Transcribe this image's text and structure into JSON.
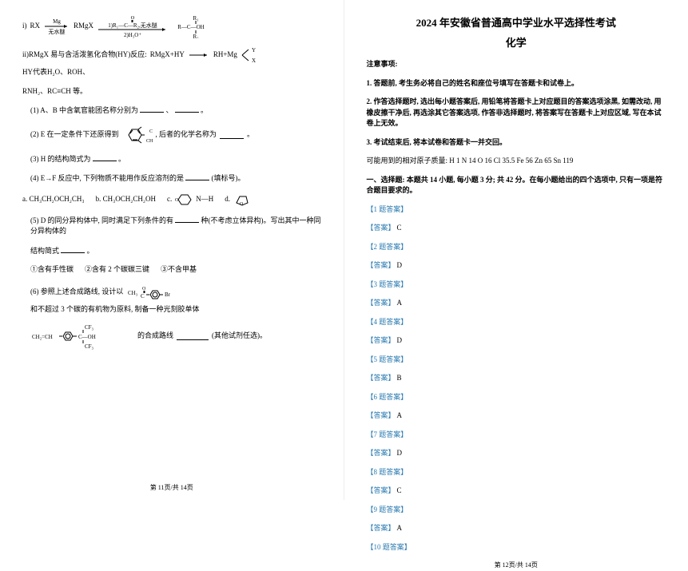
{
  "left": {
    "i_prefix": "i)",
    "i_rx": "RX",
    "i_arrow1_top": "Mg",
    "i_arrow1_bot": "无水醚",
    "i_rmgx": "RMgX",
    "i_arrow2_top1": "1)R₁—C—R₂,无水醚",
    "i_arrow2_top2": "O",
    "i_arrow2_bot": "2)H₃O⁺",
    "i_prod_top": "R₁",
    "i_prod_mid": "R—C—OH",
    "i_prod_bot": "R₂",
    "ii_text": "ii)RMgX 易与含活泼氢化合物(HY)反应:",
    "ii_eq_l": "RMgX+HY",
    "ii_eq_r": "RH+Mg",
    "ii_branch_top": "Y",
    "ii_branch_bot": "X",
    "ii_tail": "HY代表H₂O、ROH、",
    "iii_text": "RNH₂、RC≡CH 等。",
    "q1": "(1) A、B 中含氧官能团名称分别为",
    "q1_tail": "、",
    "q1_end": "。",
    "q2": "(2) E 在一定条件下还原得到",
    "q2_tail": ", 后者的化学名称为",
    "q2_end": "。",
    "q3": "(3) H 的结构简式为",
    "q3_end": "。",
    "q4": "(4) E→F 反应中, 下列物质不能用作反应溶剂的是",
    "q4_tail": "(填标号)。",
    "opt_a": "a.  CH₃CH₂OCH₂CH₃",
    "opt_b": "b.  CH₃OCH₂CH₂OH",
    "opt_c_pre": "c.",
    "opt_c_post": "N—H",
    "opt_d_pre": "d.",
    "q5": "(5) D 的同分异构体中, 同时满足下列条件的有",
    "q5_mid": "种(不考虑立体异构)。写出其中一种同分异构体的",
    "q5_tail": "结构简式",
    "q5_end": "。",
    "cond1": "①含有手性碳",
    "cond2": "②含有 2 个碳碳三键",
    "cond3": "③不含甲基",
    "q6": "(6) 参照上述合成路线, 设计以",
    "q6_mid": "和不超过 3 个碳的有机物为原料, 制备一种光刻胶单体",
    "q6_tail": "的合成路线",
    "q6_end": "(其他试剂任选)。",
    "q6_frag1": "CH₃",
    "q6_frag2": "Br",
    "q6_p_top": "CF₃",
    "q6_p_mid": "C—OH",
    "q6_p_bot": "CF₃",
    "q6_p_left": "CH₂=CH",
    "footer": "第 11页/共 14页"
  },
  "right": {
    "title": "2024 年安徽省普通高中学业水平选择性考试",
    "subject": "化学",
    "notice_h": "注意事项:",
    "n1": "1. 答题前, 考生务必将自己的姓名和座位号填写在答题卡和试卷上。",
    "n2": "2. 作答选择题时, 选出每小题答案后, 用铅笔将答题卡上对应题目的答案选项涂黑, 如需改动, 用橡皮擦干净后, 再选涂其它答案选项, 作答非选择题时, 将答案写在答题卡上对应区域, 写在本试卷上无效。",
    "n3": "3. 考试结束后, 将本试卷和答题卡一并交回。",
    "masses": "可能用到的相对原子质量:  H 1  N 14  O 16  Cl 35.5  Fe 56  Zn 65  Sn 119",
    "sec": "一、选择题: 本题共 14 小题, 每小题 3 分; 共 42 分。在每小题给出的四个选项中, 只有一项是符合题目要求的。",
    "items": [
      {
        "q": "【1 题答案】",
        "a": "【答案】C"
      },
      {
        "q": "【2 题答案】",
        "a": "【答案】D"
      },
      {
        "q": "【3 题答案】",
        "a": "【答案】A"
      },
      {
        "q": "【4 题答案】",
        "a": "【答案】D"
      },
      {
        "q": "【5 题答案】",
        "a": "【答案】B"
      },
      {
        "q": "【6 题答案】",
        "a": "【答案】A"
      },
      {
        "q": "【7 题答案】",
        "a": "【答案】D"
      },
      {
        "q": "【8 题答案】",
        "a": "【答案】C"
      },
      {
        "q": "【9 题答案】",
        "a": "【答案】A"
      },
      {
        "q": "【10 题答案】",
        "a": ""
      }
    ],
    "footer": "第 12页/共 14页"
  }
}
